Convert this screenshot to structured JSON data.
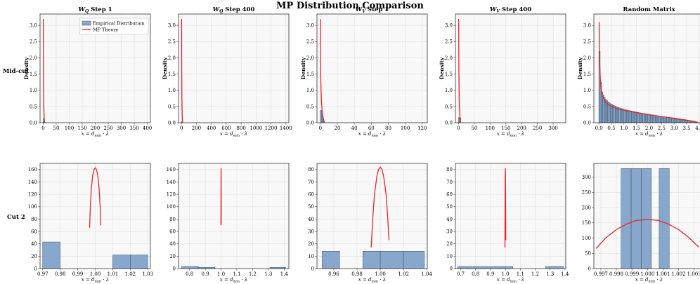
{
  "figure": {
    "title": "MP Distribution Comparison",
    "row_labels": [
      "Mid-cut",
      "Cut 2"
    ],
    "ylabel": "Density",
    "xlabel": "x = d_min · λ",
    "legend": {
      "empirical": "Empirical Distribution",
      "theory": "MP Theory"
    },
    "colors": {
      "bar": "#87a8cc",
      "bar_edge": "#3d4f63",
      "theory": "#e8262b",
      "axes_bg": "#f8f8f8",
      "grid": "#e2e2e2"
    }
  },
  "chart_data": [
    {
      "type": "bar",
      "title": "W_Q Step 1",
      "row": "Mid-cut",
      "col": 0,
      "xlim": [
        -12,
        412
      ],
      "ylim": [
        0,
        3.35
      ],
      "xticks": [
        0,
        50,
        100,
        150,
        200,
        250,
        300,
        350,
        400
      ],
      "yticks": [
        0.0,
        0.5,
        1.0,
        1.5,
        2.0,
        2.5,
        3.0
      ],
      "bars": [
        [
          0,
          4,
          0.13
        ],
        [
          4,
          8,
          0.02
        ]
      ],
      "curve": [
        [
          0.5,
          3.2
        ],
        [
          0.55,
          2.8
        ],
        [
          0.7,
          2.2
        ],
        [
          1.0,
          1.6
        ],
        [
          1.5,
          1.0
        ],
        [
          2.0,
          0.7
        ],
        [
          3.0,
          0.35
        ],
        [
          4.0,
          0.15
        ],
        [
          5.0,
          0.05
        ],
        [
          5.5,
          0.0
        ]
      ],
      "legend": true
    },
    {
      "type": "bar",
      "title": "W_Q Step 400",
      "row": "Mid-cut",
      "col": 1,
      "xlim": [
        -40,
        1440
      ],
      "ylim": [
        0,
        3.35
      ],
      "xticks": [
        0,
        200,
        400,
        600,
        800,
        1000,
        1200,
        1400
      ],
      "yticks": [
        0.0,
        0.5,
        1.0,
        1.5,
        2.0,
        2.5,
        3.0
      ],
      "bars": [
        [
          0,
          12,
          0.04
        ]
      ],
      "curve": [
        [
          1.5,
          3.2
        ],
        [
          2,
          2.6
        ],
        [
          3,
          1.6
        ],
        [
          5,
          0.9
        ],
        [
          8,
          0.4
        ],
        [
          12,
          0.1
        ],
        [
          15,
          0.0
        ]
      ]
    },
    {
      "type": "bar",
      "title": "W_V Step 1",
      "row": "Mid-cut",
      "col": 2,
      "xlim": [
        -4,
        126
      ],
      "ylim": [
        0,
        3.35
      ],
      "xticks": [
        0,
        20,
        40,
        60,
        80,
        100,
        120
      ],
      "yticks": [
        0.0,
        0.5,
        1.0,
        1.5,
        2.0,
        2.5,
        3.0
      ],
      "bars": [
        [
          0,
          1.2,
          0.38
        ],
        [
          1.2,
          2.4,
          0.35
        ],
        [
          2.4,
          3.6,
          0.1
        ],
        [
          3.6,
          4.8,
          0.05
        ]
      ],
      "curve": [
        [
          0.15,
          3.2
        ],
        [
          0.2,
          2.6
        ],
        [
          0.3,
          2.0
        ],
        [
          0.5,
          1.4
        ],
        [
          0.8,
          1.0
        ],
        [
          1.2,
          0.7
        ],
        [
          2,
          0.4
        ],
        [
          3,
          0.2
        ],
        [
          4,
          0.08
        ],
        [
          4.6,
          0.0
        ]
      ]
    },
    {
      "type": "bar",
      "title": "W_V Step 400",
      "row": "Mid-cut",
      "col": 3,
      "xlim": [
        -10,
        340
      ],
      "ylim": [
        0,
        3.35
      ],
      "xticks": [
        0,
        50,
        100,
        150,
        200,
        250,
        300
      ],
      "yticks": [
        0.0,
        0.5,
        1.0,
        1.5,
        2.0,
        2.5,
        3.0
      ],
      "bars": [
        [
          0,
          3.5,
          0.16
        ],
        [
          3.5,
          7,
          0.14
        ]
      ],
      "curve": [
        [
          0.4,
          3.2
        ],
        [
          0.6,
          2.4
        ],
        [
          1.0,
          1.6
        ],
        [
          2,
          0.8
        ],
        [
          3,
          0.4
        ],
        [
          5,
          0.12
        ],
        [
          6,
          0.0
        ]
      ]
    },
    {
      "type": "bar",
      "title": "Random Matrix",
      "row": "Mid-cut",
      "col": 4,
      "xlim": [
        -0.2,
        4.2
      ],
      "ylim": [
        0,
        3.35
      ],
      "xticks": [
        0.0,
        0.5,
        1.0,
        1.5,
        2.0,
        2.5,
        3.0,
        3.5,
        4.0
      ],
      "yticks": [
        0.0,
        0.5,
        1.0,
        1.5,
        2.0,
        2.5,
        3.0
      ],
      "bars": [
        [
          0,
          0.05,
          2.2
        ],
        [
          0.05,
          0.1,
          1.25
        ],
        [
          0.1,
          0.15,
          0.95
        ],
        [
          0.15,
          0.2,
          0.86
        ],
        [
          0.2,
          0.25,
          0.78
        ],
        [
          0.25,
          0.3,
          0.72
        ],
        [
          0.3,
          0.35,
          0.68
        ],
        [
          0.35,
          0.4,
          0.64
        ],
        [
          0.4,
          0.45,
          0.61
        ],
        [
          0.45,
          0.5,
          0.58
        ],
        [
          0.5,
          0.55,
          0.56
        ],
        [
          0.55,
          0.6,
          0.54
        ],
        [
          0.6,
          0.65,
          0.52
        ],
        [
          0.65,
          0.7,
          0.5
        ],
        [
          0.7,
          0.75,
          0.48
        ],
        [
          0.75,
          0.8,
          0.47
        ],
        [
          0.8,
          0.85,
          0.455
        ],
        [
          0.85,
          0.9,
          0.44
        ],
        [
          0.9,
          0.95,
          0.43
        ],
        [
          0.95,
          1.0,
          0.42
        ],
        [
          1.0,
          1.05,
          0.41
        ],
        [
          1.05,
          1.1,
          0.4
        ],
        [
          1.1,
          1.15,
          0.39
        ],
        [
          1.15,
          1.2,
          0.38
        ],
        [
          1.2,
          1.25,
          0.37
        ],
        [
          1.25,
          1.3,
          0.362
        ],
        [
          1.3,
          1.35,
          0.354
        ],
        [
          1.35,
          1.4,
          0.346
        ],
        [
          1.4,
          1.45,
          0.338
        ],
        [
          1.45,
          1.5,
          0.33
        ],
        [
          1.5,
          1.55,
          0.322
        ],
        [
          1.55,
          1.6,
          0.315
        ],
        [
          1.6,
          1.65,
          0.308
        ],
        [
          1.65,
          1.7,
          0.3
        ],
        [
          1.7,
          1.75,
          0.293
        ],
        [
          1.75,
          1.8,
          0.286
        ],
        [
          1.8,
          1.85,
          0.279
        ],
        [
          1.85,
          1.9,
          0.272
        ],
        [
          1.9,
          1.95,
          0.265
        ],
        [
          1.95,
          2.0,
          0.258
        ],
        [
          2.0,
          2.05,
          0.251
        ],
        [
          2.05,
          2.1,
          0.244
        ],
        [
          2.1,
          2.15,
          0.237
        ],
        [
          2.15,
          2.2,
          0.23
        ],
        [
          2.2,
          2.25,
          0.223
        ],
        [
          2.25,
          2.3,
          0.216
        ],
        [
          2.3,
          2.35,
          0.209
        ],
        [
          2.35,
          2.4,
          0.202
        ],
        [
          2.4,
          2.45,
          0.196
        ],
        [
          2.45,
          2.5,
          0.19
        ],
        [
          2.5,
          2.55,
          0.183
        ],
        [
          2.55,
          2.6,
          0.176
        ],
        [
          2.6,
          2.65,
          0.17
        ],
        [
          2.65,
          2.7,
          0.163
        ],
        [
          2.7,
          2.75,
          0.157
        ],
        [
          2.75,
          2.8,
          0.15
        ],
        [
          2.8,
          2.85,
          0.144
        ],
        [
          2.85,
          2.9,
          0.138
        ],
        [
          2.9,
          2.95,
          0.131
        ],
        [
          2.95,
          3.0,
          0.125
        ],
        [
          3.0,
          3.05,
          0.119
        ],
        [
          3.05,
          3.1,
          0.113
        ],
        [
          3.1,
          3.15,
          0.107
        ],
        [
          3.15,
          3.2,
          0.101
        ],
        [
          3.2,
          3.25,
          0.095
        ],
        [
          3.25,
          3.3,
          0.089
        ],
        [
          3.3,
          3.35,
          0.083
        ],
        [
          3.35,
          3.4,
          0.077
        ],
        [
          3.4,
          3.45,
          0.071
        ],
        [
          3.45,
          3.5,
          0.065
        ],
        [
          3.5,
          3.55,
          0.059
        ],
        [
          3.55,
          3.6,
          0.053
        ],
        [
          3.6,
          3.65,
          0.047
        ],
        [
          3.65,
          3.7,
          0.041
        ],
        [
          3.7,
          3.75,
          0.035
        ],
        [
          3.75,
          3.8,
          0.029
        ],
        [
          3.8,
          3.85,
          0.022
        ],
        [
          3.85,
          3.9,
          0.015
        ],
        [
          3.9,
          3.95,
          0.008
        ]
      ],
      "curve": [
        [
          0.01,
          3.1
        ],
        [
          0.03,
          1.9
        ],
        [
          0.06,
          1.3
        ],
        [
          0.1,
          1.0
        ],
        [
          0.2,
          0.72
        ],
        [
          0.3,
          0.6
        ],
        [
          0.5,
          0.5
        ],
        [
          0.75,
          0.43
        ],
        [
          1.0,
          0.38
        ],
        [
          1.5,
          0.31
        ],
        [
          2.0,
          0.25
        ],
        [
          2.5,
          0.19
        ],
        [
          3.0,
          0.14
        ],
        [
          3.5,
          0.08
        ],
        [
          3.8,
          0.04
        ],
        [
          3.95,
          0.01
        ]
      ]
    },
    {
      "type": "bar",
      "title": "",
      "row": "Cut 2",
      "col": 0,
      "xlim": [
        0.9685,
        1.0315
      ],
      "ylim": [
        0,
        170
      ],
      "xticks": [
        0.97,
        0.98,
        0.99,
        1.0,
        1.01,
        1.02,
        1.03
      ],
      "yticks": [
        0,
        20,
        40,
        60,
        80,
        100,
        120,
        140,
        160
      ],
      "bars": [
        [
          0.97,
          0.98,
          43
        ],
        [
          1.01,
          1.02,
          22
        ],
        [
          1.02,
          1.03,
          22
        ]
      ],
      "curve": [
        [
          0.9968,
          66
        ],
        [
          0.9972,
          100
        ],
        [
          0.9978,
          130
        ],
        [
          0.9985,
          150
        ],
        [
          0.9993,
          160
        ],
        [
          1.0,
          163
        ],
        [
          1.0007,
          160
        ],
        [
          1.0015,
          150
        ],
        [
          1.0022,
          130
        ],
        [
          1.0028,
          100
        ],
        [
          1.0032,
          70
        ]
      ]
    },
    {
      "type": "bar",
      "title": "",
      "row": "Cut 2",
      "col": 1,
      "xlim": [
        0.73,
        1.43
      ],
      "ylim": [
        0,
        170
      ],
      "xticks": [
        0.8,
        0.9,
        1.0,
        1.1,
        1.2,
        1.3,
        1.4
      ],
      "yticks": [
        0,
        20,
        40,
        60,
        80,
        100,
        120,
        140,
        160
      ],
      "bars": [
        [
          0.75,
          0.855,
          3.5
        ],
        [
          0.855,
          0.96,
          2.0
        ],
        [
          1.31,
          1.41,
          2.0
        ]
      ],
      "curve": [
        [
          0.999,
          70
        ],
        [
          0.9993,
          120
        ],
        [
          0.9996,
          150
        ],
        [
          1.0,
          162
        ],
        [
          1.0004,
          150
        ],
        [
          1.0007,
          120
        ],
        [
          1.001,
          72
        ]
      ]
    },
    {
      "type": "bar",
      "title": "",
      "row": "Cut 2",
      "col": 2,
      "xlim": [
        0.9455,
        1.0405
      ],
      "ylim": [
        0,
        85
      ],
      "xticks": [
        0.96,
        0.98,
        1.0,
        1.02,
        1.04
      ],
      "yticks": [
        0,
        10,
        20,
        30,
        40,
        50,
        60,
        70,
        80
      ],
      "bars": [
        [
          0.95,
          0.965,
          14
        ],
        [
          0.985,
          1.0,
          14
        ],
        [
          1.0,
          1.02,
          14
        ],
        [
          1.02,
          1.038,
          14
        ]
      ],
      "curve": [
        [
          0.9922,
          17
        ],
        [
          0.9935,
          40
        ],
        [
          0.995,
          60
        ],
        [
          0.997,
          74
        ],
        [
          0.9985,
          80
        ],
        [
          1.0,
          82
        ],
        [
          1.0015,
          80
        ],
        [
          1.003,
          74
        ],
        [
          1.005,
          60
        ],
        [
          1.0065,
          40
        ],
        [
          1.0075,
          23
        ]
      ]
    },
    {
      "type": "bar",
      "title": "",
      "row": "Cut 2",
      "col": 3,
      "xlim": [
        0.665,
        1.405
      ],
      "ylim": [
        0,
        85
      ],
      "xticks": [
        0.7,
        0.8,
        0.9,
        1.0,
        1.1,
        1.2,
        1.3,
        1.4
      ],
      "yticks": [
        0,
        10,
        20,
        30,
        40,
        50,
        60,
        70,
        80
      ],
      "bars": [
        [
          0.68,
          1.05,
          1.7
        ],
        [
          1.27,
          1.39,
          1.7
        ]
      ],
      "curve": [
        [
          0.997,
          17
        ],
        [
          0.998,
          50
        ],
        [
          0.999,
          74
        ],
        [
          1.0,
          81
        ],
        [
          1.001,
          74
        ],
        [
          1.002,
          50
        ],
        [
          1.003,
          23
        ]
      ]
    },
    {
      "type": "bar",
      "title": "",
      "row": "Cut 2",
      "col": 4,
      "xlim": [
        0.99655,
        1.00365
      ],
      "ylim": [
        0,
        345
      ],
      "xticks": [
        0.997,
        0.998,
        0.999,
        1.0,
        1.001,
        1.002,
        1.003
      ],
      "yticks": [
        0,
        50,
        100,
        150,
        200,
        250,
        300
      ],
      "bars": [
        [
          0.9983,
          0.99895,
          328
        ],
        [
          0.99895,
          0.9996,
          328
        ],
        [
          0.9996,
          1.00025,
          328
        ],
        [
          1.00075,
          1.0014,
          328
        ]
      ],
      "curve": [
        [
          0.9967,
          66
        ],
        [
          0.9973,
          100
        ],
        [
          0.998,
          128
        ],
        [
          0.9987,
          147
        ],
        [
          0.9993,
          158
        ],
        [
          1.0,
          161
        ],
        [
          1.0007,
          158
        ],
        [
          1.0013,
          147
        ],
        [
          1.002,
          128
        ],
        [
          1.0027,
          100
        ],
        [
          1.0033,
          70
        ]
      ]
    }
  ]
}
